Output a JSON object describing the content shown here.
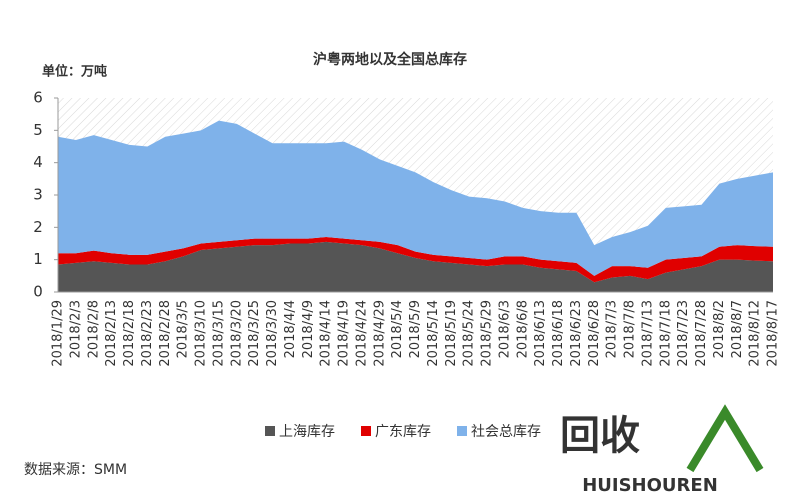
{
  "chart_data": {
    "type": "stacked_area",
    "title": "沪粤两地以及全国总库存",
    "y_label": "单位：万吨",
    "source": "数据来源：SMM",
    "logo": {
      "text": "回收",
      "subtext": "HUISHOUREN"
    },
    "categories": [
      "2018/1/29",
      "2018/2/3",
      "2018/2/8",
      "2018/2/13",
      "2018/2/18",
      "2018/2/23",
      "2018/2/28",
      "2018/3/5",
      "2018/3/10",
      "2018/3/15",
      "2018/3/20",
      "2018/3/25",
      "2018/3/30",
      "2018/4/4",
      "2018/4/9",
      "2018/4/14",
      "2018/4/19",
      "2018/4/24",
      "2018/4/29",
      "2018/5/4",
      "2018/5/9",
      "2018/5/14",
      "2018/5/19",
      "2018/5/24",
      "2018/5/29",
      "2018/6/3",
      "2018/6/8",
      "2018/6/13",
      "2018/6/18",
      "2018/6/23",
      "2018/6/28",
      "2018/7/3",
      "2018/7/8",
      "2018/7/13",
      "2018/7/18",
      "2018/7/23",
      "2018/7/28",
      "2018/8/2",
      "2018/8/7",
      "2018/8/12",
      "2018/8/17"
    ],
    "series": [
      {
        "name": "上海库存",
        "color": "#555555",
        "values": [
          0.85,
          0.9,
          0.95,
          0.9,
          0.85,
          0.85,
          0.95,
          1.1,
          1.3,
          1.35,
          1.4,
          1.45,
          1.45,
          1.5,
          1.5,
          1.55,
          1.5,
          1.45,
          1.35,
          1.2,
          1.05,
          0.95,
          0.9,
          0.85,
          0.8,
          0.85,
          0.85,
          0.75,
          0.7,
          0.65,
          0.3,
          0.45,
          0.5,
          0.4,
          0.6,
          0.7,
          0.8,
          1.0,
          1.0,
          0.97,
          0.95
        ]
      },
      {
        "name": "广东库存",
        "color": "#e00000",
        "values": [
          0.35,
          0.3,
          0.33,
          0.3,
          0.3,
          0.3,
          0.3,
          0.25,
          0.2,
          0.2,
          0.2,
          0.2,
          0.2,
          0.15,
          0.15,
          0.15,
          0.15,
          0.15,
          0.2,
          0.25,
          0.2,
          0.2,
          0.2,
          0.2,
          0.2,
          0.25,
          0.25,
          0.25,
          0.25,
          0.25,
          0.2,
          0.35,
          0.3,
          0.35,
          0.4,
          0.35,
          0.3,
          0.4,
          0.45,
          0.45,
          0.45
        ]
      },
      {
        "name": "社会总库存",
        "color": "#7fb2ea",
        "values": [
          3.6,
          3.5,
          3.57,
          3.5,
          3.4,
          3.35,
          3.55,
          3.55,
          3.5,
          3.75,
          3.6,
          3.25,
          2.95,
          2.95,
          2.95,
          2.9,
          3.0,
          2.8,
          2.55,
          2.45,
          2.45,
          2.25,
          2.05,
          1.9,
          1.9,
          1.7,
          1.5,
          1.5,
          1.5,
          1.55,
          0.95,
          0.9,
          1.05,
          1.3,
          1.6,
          1.6,
          1.6,
          1.95,
          2.05,
          2.18,
          2.3
        ]
      }
    ],
    "ylim": [
      0,
      6
    ],
    "yticks": [
      0,
      1,
      2,
      3,
      4,
      5,
      6
    ],
    "legend": "bottom"
  }
}
